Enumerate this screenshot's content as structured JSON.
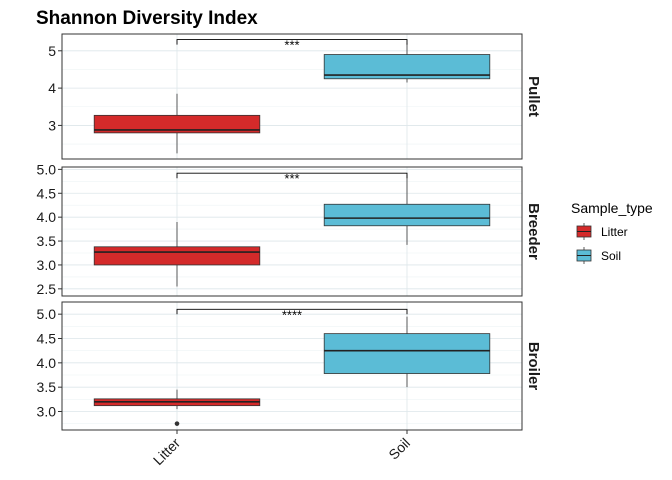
{
  "chart_data": {
    "type": "boxplot",
    "title": "Shannon Diversity Index",
    "categories": [
      "Litter",
      "Soil"
    ],
    "legend": {
      "title": "Sample_type",
      "position": "right",
      "items": [
        {
          "label": "Litter",
          "color": "#d42a2a"
        },
        {
          "label": "Soil",
          "color": "#5bbcd6"
        }
      ]
    },
    "grid": true,
    "panels": [
      {
        "name": "Pullet",
        "ylim": [
          2.1,
          5.45
        ],
        "yticks": [
          3,
          4,
          5
        ],
        "ytick_labels": [
          "3",
          "4",
          "5"
        ],
        "boxes": [
          {
            "category": "Litter",
            "min": 2.25,
            "q1": 2.8,
            "median": 2.88,
            "q3": 3.27,
            "max": 3.85,
            "outliers": []
          },
          {
            "category": "Soil",
            "min": 4.15,
            "q1": 4.25,
            "median": 4.35,
            "q3": 4.9,
            "max": 5.2,
            "outliers": []
          }
        ],
        "significance": {
          "label": "***",
          "y": 5.3
        }
      },
      {
        "name": "Breeder",
        "ylim": [
          2.35,
          5.05
        ],
        "yticks": [
          2.5,
          3.0,
          3.5,
          4.0,
          4.5,
          5.0
        ],
        "ytick_labels": [
          "2.5",
          "3.0",
          "3.5",
          "4.0",
          "4.5",
          "5.0"
        ],
        "boxes": [
          {
            "category": "Litter",
            "min": 2.55,
            "q1": 3.0,
            "median": 3.27,
            "q3": 3.38,
            "max": 3.9,
            "outliers": []
          },
          {
            "category": "Soil",
            "min": 3.42,
            "q1": 3.82,
            "median": 3.98,
            "q3": 4.27,
            "max": 4.88,
            "outliers": []
          }
        ],
        "significance": {
          "label": "***",
          "y": 4.92
        }
      },
      {
        "name": "Broiler",
        "ylim": [
          2.62,
          5.25
        ],
        "yticks": [
          3.0,
          3.5,
          4.0,
          4.5,
          5.0
        ],
        "ytick_labels": [
          "3.0",
          "3.5",
          "4.0",
          "4.5",
          "5.0"
        ],
        "boxes": [
          {
            "category": "Litter",
            "min": 3.05,
            "q1": 3.12,
            "median": 3.2,
            "q3": 3.26,
            "max": 3.45,
            "outliers": [
              2.75
            ]
          },
          {
            "category": "Soil",
            "min": 3.5,
            "q1": 3.78,
            "median": 4.25,
            "q3": 4.6,
            "max": 4.95,
            "outliers": []
          }
        ],
        "significance": {
          "label": "****",
          "y": 5.1
        }
      }
    ]
  }
}
